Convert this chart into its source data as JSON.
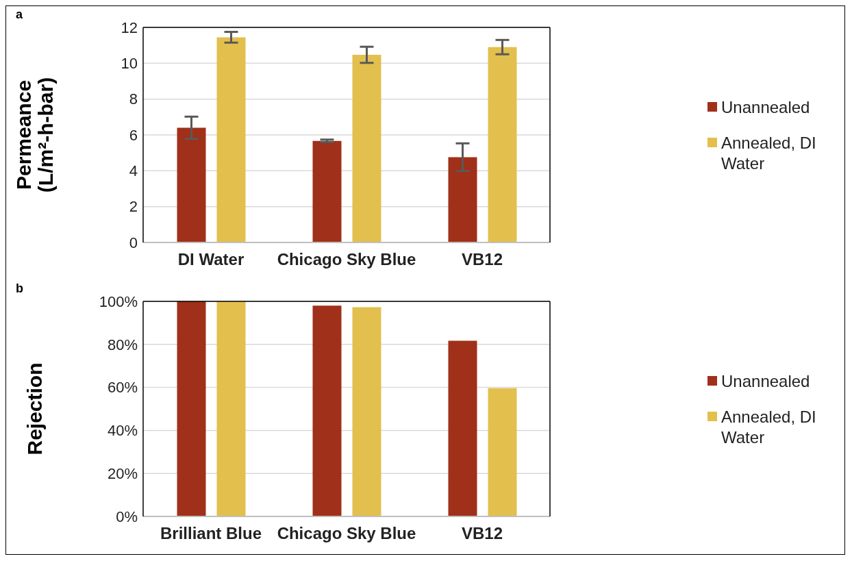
{
  "chart_data": [
    {
      "type": "bar",
      "annotations": [
        "a"
      ],
      "ylabel": "Permeance\n(L/m²-h-bar)",
      "categories": [
        "DI Water",
        "Chicago Sky Blue",
        "VB12"
      ],
      "series": [
        {
          "name": "Unannealed",
          "color": "#a03019",
          "values": [
            6.4,
            5.67,
            4.76
          ],
          "errors": [
            0.62,
            0.07,
            0.77
          ]
        },
        {
          "name": "Annealed, DI Water",
          "color": "#e3bf4e",
          "values": [
            11.45,
            10.47,
            10.9
          ],
          "errors": [
            0.3,
            0.45,
            0.4
          ]
        }
      ],
      "ylim": [
        0,
        12
      ],
      "yticks": [
        0,
        2,
        4,
        6,
        8,
        10,
        12
      ],
      "grid": "y",
      "legend": "right"
    },
    {
      "type": "bar",
      "annotations": [
        "b"
      ],
      "ylabel": "Rejection",
      "categories": [
        "Brilliant Blue",
        "Chicago Sky Blue",
        "VB12"
      ],
      "series": [
        {
          "name": "Unannealed",
          "color": "#a03019",
          "values": [
            100,
            98,
            81.7
          ]
        },
        {
          "name": "Annealed, DI Water",
          "color": "#e3bf4e",
          "values": [
            100,
            97.3,
            59.6
          ]
        }
      ],
      "ylim": [
        0,
        100
      ],
      "yticks": [
        {
          "value": 0,
          "label": "0%"
        },
        {
          "value": 20,
          "label": "20%"
        },
        {
          "value": 40,
          "label": "40%"
        },
        {
          "value": 60,
          "label": "60%"
        },
        {
          "value": 80,
          "label": "80%"
        },
        {
          "value": 100,
          "label": "100%"
        }
      ],
      "grid": "y",
      "legend": "right"
    }
  ]
}
